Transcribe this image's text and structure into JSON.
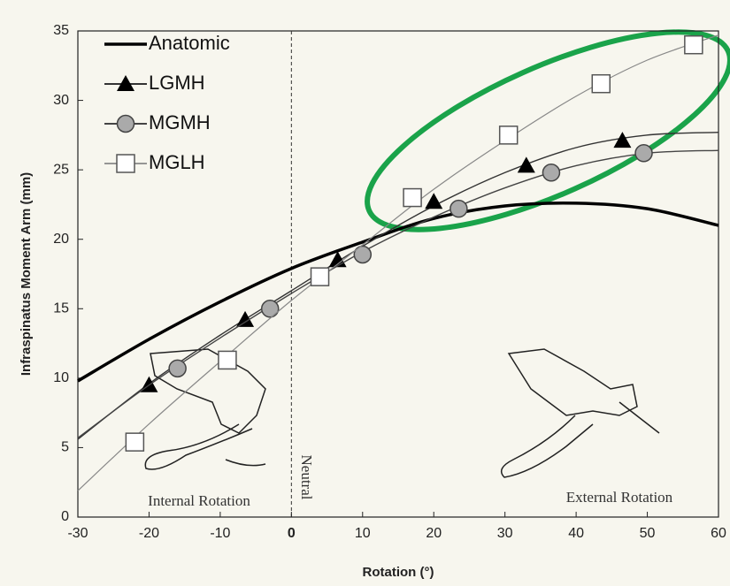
{
  "chart_data": {
    "type": "line",
    "xlabel": "Rotation (°)",
    "ylabel": "Infraspinatus Moment Arm (mm)",
    "xlim": [
      -30,
      60
    ],
    "xticks": [
      -30,
      -20,
      -10,
      0,
      10,
      20,
      30,
      40,
      50,
      60
    ],
    "ylim": [
      0,
      35
    ],
    "yticks": [
      0,
      5,
      10,
      15,
      20,
      25,
      30,
      35
    ],
    "annotations": [
      "Internal Rotation",
      "External Rotation",
      "Neutral"
    ],
    "series": [
      {
        "name": "Anatomic",
        "color": "#000000",
        "x": [],
        "values": [],
        "curve_x": [
          -30,
          -20,
          -10,
          0,
          10,
          20,
          30,
          40,
          50,
          60
        ],
        "curve_values": [
          9.8,
          12.8,
          15.5,
          17.9,
          19.8,
          21.5,
          22.4,
          22.6,
          22.2,
          21.0
        ]
      },
      {
        "name": "LGMH",
        "color": "#333333",
        "x": [
          -20,
          -6.5,
          6.5,
          20,
          33,
          46.5
        ],
        "values": [
          9.5,
          14.2,
          18.5,
          22.7,
          25.3,
          27.1
        ],
        "curve_x": [
          -30,
          -20,
          -10,
          0,
          10,
          20,
          30,
          40,
          50,
          60
        ],
        "curve_values": [
          5.6,
          9.6,
          13.1,
          16.3,
          19.5,
          22.4,
          24.8,
          26.6,
          27.5,
          27.7
        ]
      },
      {
        "name": "MGMH",
        "color": "#444444",
        "x": [
          -16,
          -3,
          10,
          23.5,
          36.5,
          49.5
        ],
        "values": [
          10.7,
          15.0,
          18.9,
          22.2,
          24.8,
          26.2
        ],
        "curve_x": [
          -30,
          -20,
          -10,
          0,
          10,
          20,
          30,
          40,
          50,
          60
        ],
        "curve_values": [
          5.7,
          9.5,
          12.9,
          16.1,
          19.1,
          21.6,
          23.7,
          25.3,
          26.2,
          26.4
        ]
      },
      {
        "name": "MGLH",
        "color": "#888888",
        "x": [
          -22,
          -9,
          4,
          17,
          30.5,
          43.5,
          56.5
        ],
        "values": [
          5.4,
          11.3,
          17.3,
          23.0,
          27.5,
          31.2,
          34.0
        ],
        "curve_x": [
          -30,
          -20,
          -10,
          0,
          10,
          20,
          30,
          40,
          50,
          60
        ],
        "curve_values": [
          1.9,
          6.7,
          11.2,
          15.6,
          19.6,
          23.6,
          27.1,
          30.3,
          32.9,
          34.7
        ]
      }
    ]
  }
}
